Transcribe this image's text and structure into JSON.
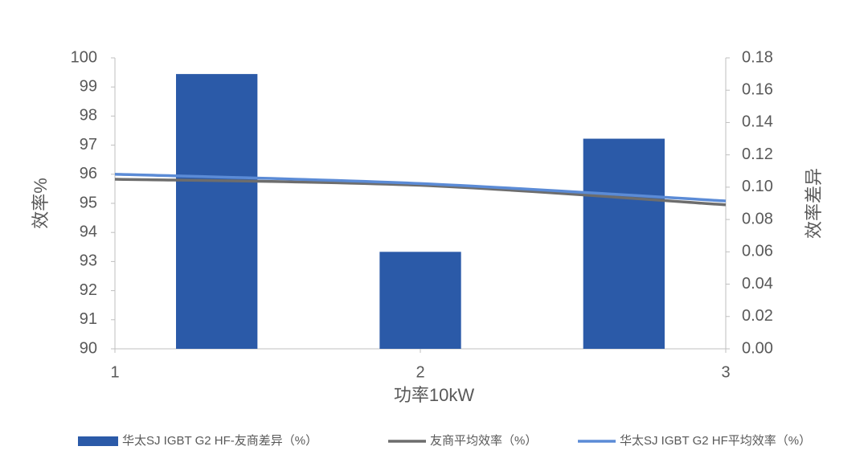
{
  "chart_data": {
    "type": "combo",
    "x_title": "功率10kW",
    "y_title": "效率%",
    "y2_title": "效率差异",
    "xlim": [
      1,
      3
    ],
    "xticks": [
      1,
      2,
      3
    ],
    "ylim": [
      90,
      100
    ],
    "yticks": [
      90,
      91,
      92,
      93,
      94,
      95,
      96,
      97,
      98,
      99,
      100
    ],
    "y2lim": [
      0,
      0.18
    ],
    "y2ticks": [
      {
        "value": 0,
        "label": "0.00"
      },
      0.02,
      0.04,
      0.06,
      0.08,
      {
        "value": 0.1,
        "label": "0.10"
      },
      0.12,
      0.14,
      0.16,
      0.18
    ],
    "categories": [
      null,
      null,
      null
    ],
    "x": [
      1,
      2,
      3
    ],
    "legend": "bottom",
    "series": [
      {
        "name": "华太SJ IGBT G2 HF-友商差异（%）",
        "type": "bar",
        "axis": "y2",
        "color": "#2b5aa8",
        "values": [
          0.17,
          0.06,
          0.13
        ]
      },
      {
        "name": "友商平均效率（%）",
        "type": "line",
        "color": "#6d6d6d",
        "values": [
          95.83,
          95.62,
          94.95
        ]
      },
      {
        "name": "华太SJ IGBT G2 HF平均效率（%）",
        "type": "line",
        "color": "#5b8bd6",
        "values": [
          96.0,
          95.68,
          95.08
        ]
      }
    ]
  }
}
